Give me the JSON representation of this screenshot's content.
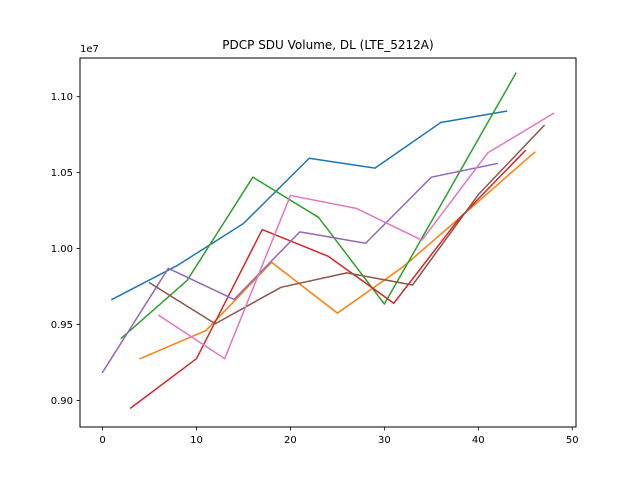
{
  "chart_data": {
    "type": "line",
    "title": "PDCP SDU Volume, DL (LTE_5212A)",
    "xlabel": "",
    "ylabel": "",
    "y_offset_label": "1e7",
    "xlim": [
      -2.4,
      50.4
    ],
    "ylim": [
      0.8825,
      1.1255
    ],
    "x_ticks": [
      0,
      10,
      20,
      30,
      40,
      50
    ],
    "x_tick_labels": [
      "0",
      "10",
      "20",
      "30",
      "40",
      "50"
    ],
    "y_ticks": [
      0.9,
      0.95,
      1.0,
      1.05,
      1.1
    ],
    "y_tick_labels": [
      "0.90",
      "0.95",
      "1.00",
      "1.05",
      "1.10"
    ],
    "grid": false,
    "legend": "none",
    "series": [
      {
        "color": "#1f77b4",
        "x": [
          1,
          8,
          15,
          22,
          29,
          36,
          43
        ],
        "y": [
          0.9665,
          0.989,
          1.0165,
          1.0595,
          1.053,
          1.083,
          1.0905
        ]
      },
      {
        "color": "#ff7f0e",
        "x": [
          4,
          11,
          18,
          25,
          32,
          39,
          46
        ],
        "y": [
          0.9275,
          0.946,
          0.991,
          0.9575,
          0.988,
          1.0255,
          1.0635
        ]
      },
      {
        "color": "#2ca02c",
        "x": [
          2,
          9,
          16,
          23,
          30,
          37,
          44
        ],
        "y": [
          0.941,
          0.979,
          1.047,
          1.0205,
          0.9635,
          1.0395,
          1.1155
        ]
      },
      {
        "color": "#d62728",
        "x": [
          3,
          10,
          17,
          24,
          31,
          38,
          45
        ],
        "y": [
          0.895,
          0.9275,
          1.0125,
          0.995,
          0.964,
          1.02,
          1.0645
        ]
      },
      {
        "color": "#9467bd",
        "x": [
          0,
          7,
          14,
          21,
          28,
          35,
          42
        ],
        "y": [
          0.9185,
          0.987,
          0.9665,
          1.011,
          1.0035,
          1.047,
          1.056
        ]
      },
      {
        "color": "#8c564b",
        "x": [
          5,
          12,
          19,
          26,
          33,
          40,
          47
        ],
        "y": [
          0.9775,
          0.9505,
          0.9745,
          0.984,
          0.976,
          1.0355,
          1.081
        ]
      },
      {
        "color": "#e377c2",
        "x": [
          6,
          13,
          20,
          27,
          34,
          41,
          48
        ],
        "y": [
          0.956,
          0.9275,
          1.035,
          1.0265,
          1.0055,
          1.063,
          1.089
        ]
      }
    ]
  }
}
